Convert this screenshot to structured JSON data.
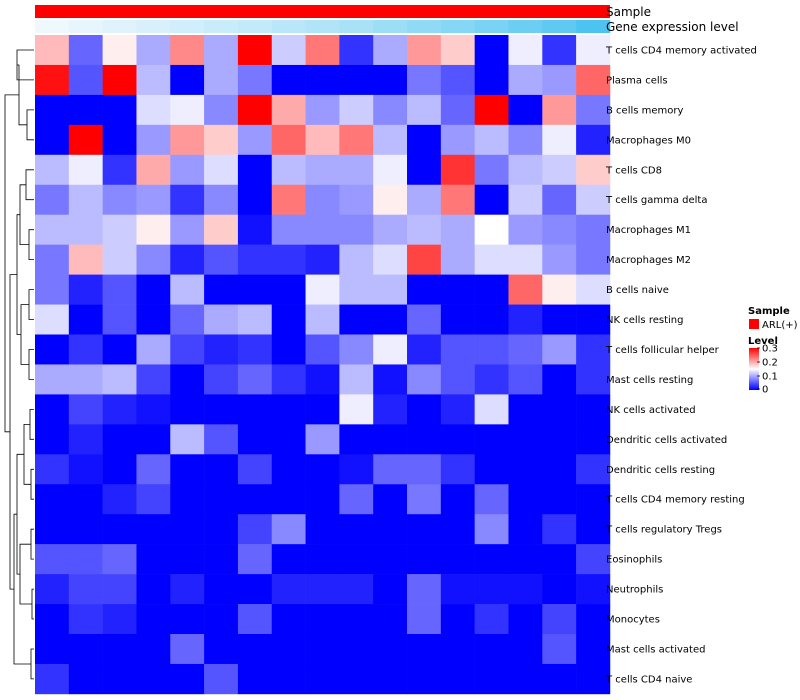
{
  "chart_data": {
    "type": "heatmap",
    "title": "",
    "annotation_rows": [
      {
        "label": "Sample",
        "color": "#ff0000"
      },
      {
        "label": "Gene expression level"
      }
    ],
    "gene_expression_level": [
      0.0,
      0.03,
      0.06,
      0.1,
      0.13,
      0.16,
      0.19,
      0.23,
      0.26,
      0.3,
      0.35,
      0.4,
      0.45,
      0.5,
      0.56,
      0.62,
      0.7
    ],
    "rows": [
      "T cells CD4 memory activated",
      "Plasma cells",
      "B cells memory",
      "Macrophages M0",
      "T cells CD8",
      "T cells gamma delta",
      "Macrophages M1",
      "Macrophages M2",
      "B cells naive",
      "NK cells resting",
      "T cells follicular helper",
      "Mast cells resting",
      "NK cells activated",
      "Dendritic cells activated",
      "Dendritic cells resting",
      "T cells CD4 memory resting",
      "T cells regulatory  Tregs",
      "Eosinophils",
      "Neutrophils",
      "Monocytes",
      "Mast cells activated",
      "T cells CD4 naive"
    ],
    "values": [
      [
        0.19,
        0.06,
        0.16,
        0.1,
        0.22,
        0.1,
        0.3,
        0.12,
        0.23,
        0.03,
        0.1,
        0.21,
        0.18,
        0.0,
        0.14,
        0.03,
        0.14
      ],
      [
        0.29,
        0.05,
        0.3,
        0.11,
        0.0,
        0.1,
        0.07,
        0.0,
        0.0,
        0.0,
        0.0,
        0.07,
        0.05,
        0.0,
        0.1,
        0.09,
        0.24
      ],
      [
        0.0,
        0.0,
        0.0,
        0.13,
        0.14,
        0.08,
        0.3,
        0.2,
        0.09,
        0.12,
        0.08,
        0.11,
        0.06,
        0.3,
        0.0,
        0.21,
        0.07
      ],
      [
        0.0,
        0.3,
        0.0,
        0.09,
        0.21,
        0.18,
        0.09,
        0.24,
        0.19,
        0.23,
        0.11,
        0.0,
        0.09,
        0.11,
        0.08,
        0.14,
        0.02
      ],
      [
        0.11,
        0.14,
        0.03,
        0.2,
        0.09,
        0.13,
        0.0,
        0.11,
        0.1,
        0.1,
        0.14,
        0.0,
        0.27,
        0.07,
        0.11,
        0.12,
        0.18
      ],
      [
        0.07,
        0.11,
        0.08,
        0.09,
        0.03,
        0.08,
        0.0,
        0.23,
        0.08,
        0.09,
        0.16,
        0.1,
        0.23,
        0.0,
        0.12,
        0.06,
        0.12
      ],
      [
        0.11,
        0.11,
        0.12,
        0.16,
        0.09,
        0.18,
        0.01,
        0.08,
        0.08,
        0.08,
        0.1,
        0.11,
        0.1,
        0.15,
        0.09,
        0.08,
        0.07
      ],
      [
        0.07,
        0.19,
        0.12,
        0.08,
        0.02,
        0.05,
        0.03,
        0.03,
        0.02,
        0.11,
        0.13,
        0.26,
        0.1,
        0.13,
        0.13,
        0.09,
        0.07
      ],
      [
        0.07,
        0.02,
        0.05,
        0.0,
        0.11,
        0.0,
        0.0,
        0.0,
        0.14,
        0.11,
        0.11,
        0.0,
        0.0,
        0.0,
        0.24,
        0.16,
        0.13
      ],
      [
        0.13,
        0.0,
        0.05,
        0.0,
        0.06,
        0.1,
        0.11,
        0.0,
        0.11,
        0.0,
        0.0,
        0.06,
        0.0,
        0.0,
        0.02,
        0.0,
        0.0
      ],
      [
        0.0,
        0.03,
        0.0,
        0.1,
        0.04,
        0.02,
        0.03,
        0.0,
        0.05,
        0.08,
        0.14,
        0.02,
        0.05,
        0.05,
        0.06,
        0.09,
        0.03
      ],
      [
        0.1,
        0.1,
        0.11,
        0.04,
        0.0,
        0.04,
        0.06,
        0.03,
        0.01,
        0.11,
        0.01,
        0.08,
        0.05,
        0.03,
        0.05,
        0.0,
        0.03
      ],
      [
        0.0,
        0.04,
        0.02,
        0.01,
        0.0,
        0.0,
        0.0,
        0.0,
        0.0,
        0.14,
        0.02,
        0.0,
        0.02,
        0.13,
        0.0,
        0.0,
        0.0
      ],
      [
        0.0,
        0.02,
        0.0,
        0.0,
        0.11,
        0.05,
        0.0,
        0.0,
        0.09,
        0.0,
        0.0,
        0.0,
        0.0,
        0.0,
        0.0,
        0.0,
        0.0
      ],
      [
        0.03,
        0.01,
        0.0,
        0.06,
        0.0,
        0.0,
        0.04,
        0.0,
        0.0,
        0.01,
        0.06,
        0.06,
        0.03,
        0.0,
        0.0,
        0.0,
        0.03
      ],
      [
        0.0,
        0.0,
        0.02,
        0.04,
        0.0,
        0.0,
        0.0,
        0.0,
        0.0,
        0.06,
        0.0,
        0.07,
        0.0,
        0.06,
        0.0,
        0.0,
        0.0
      ],
      [
        0.0,
        0.0,
        0.0,
        0.0,
        0.0,
        0.0,
        0.04,
        0.08,
        0.0,
        0.0,
        0.0,
        0.0,
        0.0,
        0.08,
        0.0,
        0.03,
        0.0
      ],
      [
        0.05,
        0.05,
        0.06,
        0.0,
        0.0,
        0.0,
        0.06,
        0.0,
        0.0,
        0.0,
        0.0,
        0.0,
        0.0,
        0.0,
        0.0,
        0.0,
        0.04
      ],
      [
        0.02,
        0.04,
        0.04,
        0.0,
        0.02,
        0.0,
        0.0,
        0.02,
        0.02,
        0.02,
        0.0,
        0.06,
        0.01,
        0.01,
        0.01,
        0.0,
        0.01
      ],
      [
        0.0,
        0.03,
        0.02,
        0.0,
        0.0,
        0.0,
        0.05,
        0.0,
        0.0,
        0.0,
        0.0,
        0.06,
        0.0,
        0.03,
        0.0,
        0.04,
        0.0
      ],
      [
        0.0,
        0.0,
        0.0,
        0.0,
        0.06,
        0.0,
        0.0,
        0.0,
        0.0,
        0.0,
        0.0,
        0.0,
        0.0,
        0.0,
        0.0,
        0.05,
        0.0
      ],
      [
        0.03,
        0.0,
        0.0,
        0.0,
        0.0,
        0.05,
        0.0,
        0.0,
        0.0,
        0.0,
        0.0,
        0.0,
        0.0,
        0.0,
        0.0,
        0.0,
        0.0
      ]
    ],
    "color_scale": {
      "low": "#0000ff",
      "mid": "#ffffff",
      "high": "#ff0000",
      "min": 0,
      "mid_value": 0.15,
      "max": 0.3
    },
    "legend": {
      "placement": "right",
      "sample_title": "Sample",
      "sample_label": "ARL(+)",
      "level_title": "Level",
      "level_ticks": [
        0.3,
        0.2,
        0.1,
        0
      ],
      "level_tick_labels": [
        "0.3",
        "0.2",
        "0.1",
        "0"
      ]
    },
    "dendrogram": "row clustering tree on the left"
  }
}
